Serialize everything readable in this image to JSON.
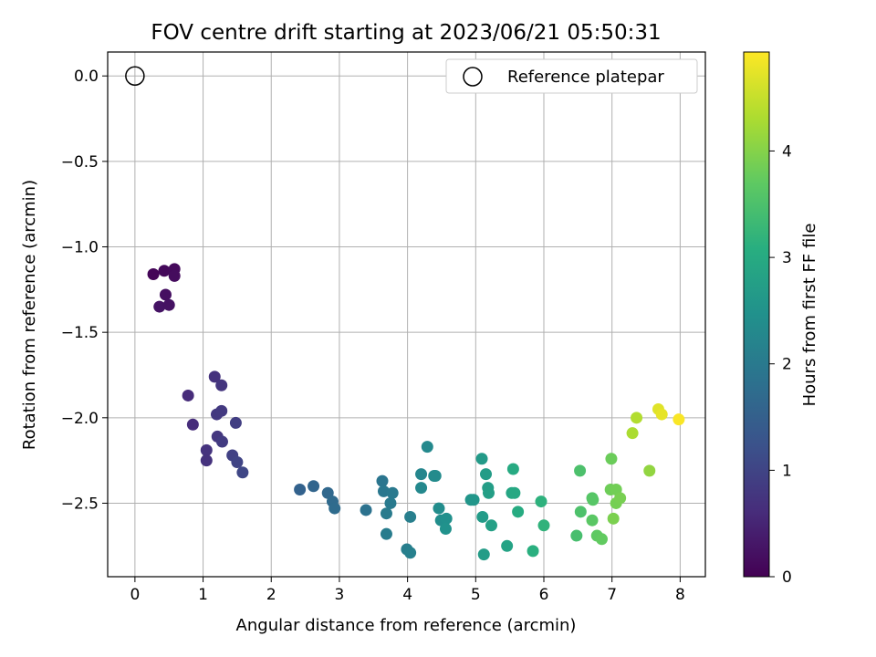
{
  "chart_data": {
    "type": "scatter",
    "title": "FOV centre drift starting at 2023/06/21 05:50:31",
    "xlabel": "Angular distance from reference (arcmin)",
    "ylabel": "Rotation from reference (arcmin)",
    "colorbar_label": "Hours from first FF file",
    "xlim": [
      -0.4,
      8.37
    ],
    "ylim": [
      -2.93,
      0.14
    ],
    "clim": [
      0,
      4.93
    ],
    "colormap": "viridis",
    "grid": true,
    "legend_position": "upper right",
    "x_ticks": [
      0,
      1,
      2,
      3,
      4,
      5,
      6,
      7,
      8
    ],
    "x_tick_labels": [
      "0",
      "1",
      "2",
      "3",
      "4",
      "5",
      "6",
      "7",
      "8"
    ],
    "y_ticks": [
      0.0,
      -0.5,
      -1.0,
      -1.5,
      -2.0,
      -2.5
    ],
    "y_tick_labels": [
      "0.0",
      "−0.5",
      "−1.0",
      "−1.5",
      "−2.0",
      "−2.5"
    ],
    "colorbar_ticks": [
      0,
      1,
      2,
      3,
      4
    ],
    "colorbar_tick_labels": [
      "0",
      "1",
      "2",
      "3",
      "4"
    ],
    "reference": {
      "name": "Reference platepar",
      "x": 0,
      "y": 0
    },
    "points": [
      {
        "x": 0.27,
        "y": -1.16,
        "h": 0.05
      },
      {
        "x": 0.43,
        "y": -1.14,
        "h": 0.1
      },
      {
        "x": 0.58,
        "y": -1.13,
        "h": 0.12
      },
      {
        "x": 0.58,
        "y": -1.17,
        "h": 0.15
      },
      {
        "x": 0.45,
        "y": -1.28,
        "h": 0.2
      },
      {
        "x": 0.36,
        "y": -1.35,
        "h": 0.25
      },
      {
        "x": 0.5,
        "y": -1.34,
        "h": 0.22
      },
      {
        "x": 1.17,
        "y": -1.76,
        "h": 0.7
      },
      {
        "x": 1.27,
        "y": -1.81,
        "h": 0.75
      },
      {
        "x": 0.78,
        "y": -1.87,
        "h": 0.6
      },
      {
        "x": 1.2,
        "y": -1.98,
        "h": 0.8
      },
      {
        "x": 1.27,
        "y": -1.96,
        "h": 0.82
      },
      {
        "x": 0.85,
        "y": -2.04,
        "h": 0.62
      },
      {
        "x": 1.48,
        "y": -2.03,
        "h": 0.9
      },
      {
        "x": 1.21,
        "y": -2.11,
        "h": 0.78
      },
      {
        "x": 1.28,
        "y": -2.14,
        "h": 0.85
      },
      {
        "x": 1.05,
        "y": -2.19,
        "h": 0.72
      },
      {
        "x": 1.43,
        "y": -2.22,
        "h": 0.95
      },
      {
        "x": 1.05,
        "y": -2.25,
        "h": 0.7
      },
      {
        "x": 1.5,
        "y": -2.26,
        "h": 1.0
      },
      {
        "x": 1.58,
        "y": -2.32,
        "h": 1.05
      },
      {
        "x": 2.42,
        "y": -2.42,
        "h": 1.55
      },
      {
        "x": 2.62,
        "y": -2.4,
        "h": 1.6
      },
      {
        "x": 2.83,
        "y": -2.44,
        "h": 1.65
      },
      {
        "x": 2.9,
        "y": -2.49,
        "h": 1.7
      },
      {
        "x": 2.93,
        "y": -2.53,
        "h": 1.72
      },
      {
        "x": 3.39,
        "y": -2.54,
        "h": 1.85
      },
      {
        "x": 3.63,
        "y": -2.37,
        "h": 1.9
      },
      {
        "x": 3.65,
        "y": -2.43,
        "h": 1.95
      },
      {
        "x": 3.78,
        "y": -2.44,
        "h": 1.98
      },
      {
        "x": 3.75,
        "y": -2.5,
        "h": 2.0
      },
      {
        "x": 3.69,
        "y": -2.56,
        "h": 2.02
      },
      {
        "x": 3.69,
        "y": -2.68,
        "h": 2.05
      },
      {
        "x": 4.04,
        "y": -2.58,
        "h": 2.1
      },
      {
        "x": 3.99,
        "y": -2.77,
        "h": 2.08
      },
      {
        "x": 4.04,
        "y": -2.79,
        "h": 2.12
      },
      {
        "x": 4.2,
        "y": -2.33,
        "h": 2.25
      },
      {
        "x": 4.2,
        "y": -2.41,
        "h": 2.28
      },
      {
        "x": 4.29,
        "y": -2.17,
        "h": 2.3
      },
      {
        "x": 4.39,
        "y": -2.34,
        "h": 2.33
      },
      {
        "x": 4.41,
        "y": -2.34,
        "h": 2.35
      },
      {
        "x": 4.46,
        "y": -2.53,
        "h": 2.38
      },
      {
        "x": 4.49,
        "y": -2.6,
        "h": 2.4
      },
      {
        "x": 4.57,
        "y": -2.59,
        "h": 2.45
      },
      {
        "x": 4.56,
        "y": -2.65,
        "h": 2.48
      },
      {
        "x": 4.93,
        "y": -2.48,
        "h": 2.55
      },
      {
        "x": 4.97,
        "y": -2.48,
        "h": 2.58
      },
      {
        "x": 5.09,
        "y": -2.24,
        "h": 2.65
      },
      {
        "x": 5.15,
        "y": -2.33,
        "h": 2.7
      },
      {
        "x": 5.18,
        "y": -2.41,
        "h": 2.72
      },
      {
        "x": 5.19,
        "y": -2.44,
        "h": 2.75
      },
      {
        "x": 5.1,
        "y": -2.58,
        "h": 2.68
      },
      {
        "x": 5.23,
        "y": -2.63,
        "h": 2.78
      },
      {
        "x": 5.12,
        "y": -2.8,
        "h": 2.7
      },
      {
        "x": 5.46,
        "y": -2.75,
        "h": 2.85
      },
      {
        "x": 5.53,
        "y": -2.44,
        "h": 2.9
      },
      {
        "x": 5.57,
        "y": -2.44,
        "h": 2.95
      },
      {
        "x": 5.55,
        "y": -2.3,
        "h": 3.0
      },
      {
        "x": 5.62,
        "y": -2.55,
        "h": 3.02
      },
      {
        "x": 5.84,
        "y": -2.78,
        "h": 3.1
      },
      {
        "x": 5.96,
        "y": -2.49,
        "h": 3.15
      },
      {
        "x": 6.0,
        "y": -2.63,
        "h": 3.18
      },
      {
        "x": 6.48,
        "y": -2.69,
        "h": 3.45
      },
      {
        "x": 6.53,
        "y": -2.31,
        "h": 3.5
      },
      {
        "x": 6.54,
        "y": -2.55,
        "h": 3.52
      },
      {
        "x": 6.71,
        "y": -2.47,
        "h": 3.6
      },
      {
        "x": 6.72,
        "y": -2.48,
        "h": 3.62
      },
      {
        "x": 6.71,
        "y": -2.6,
        "h": 3.65
      },
      {
        "x": 6.78,
        "y": -2.69,
        "h": 3.7
      },
      {
        "x": 6.85,
        "y": -2.71,
        "h": 3.72
      },
      {
        "x": 6.99,
        "y": -2.24,
        "h": 3.8
      },
      {
        "x": 6.98,
        "y": -2.42,
        "h": 3.82
      },
      {
        "x": 7.06,
        "y": -2.42,
        "h": 3.85
      },
      {
        "x": 7.06,
        "y": -2.5,
        "h": 3.88
      },
      {
        "x": 7.12,
        "y": -2.47,
        "h": 3.9
      },
      {
        "x": 7.02,
        "y": -2.59,
        "h": 3.92
      },
      {
        "x": 7.3,
        "y": -2.09,
        "h": 4.3
      },
      {
        "x": 7.36,
        "y": -2.0,
        "h": 4.35
      },
      {
        "x": 7.55,
        "y": -2.31,
        "h": 4.1
      },
      {
        "x": 7.68,
        "y": -1.95,
        "h": 4.7
      },
      {
        "x": 7.73,
        "y": -1.98,
        "h": 4.75
      },
      {
        "x": 7.98,
        "y": -2.01,
        "h": 4.9
      }
    ]
  }
}
